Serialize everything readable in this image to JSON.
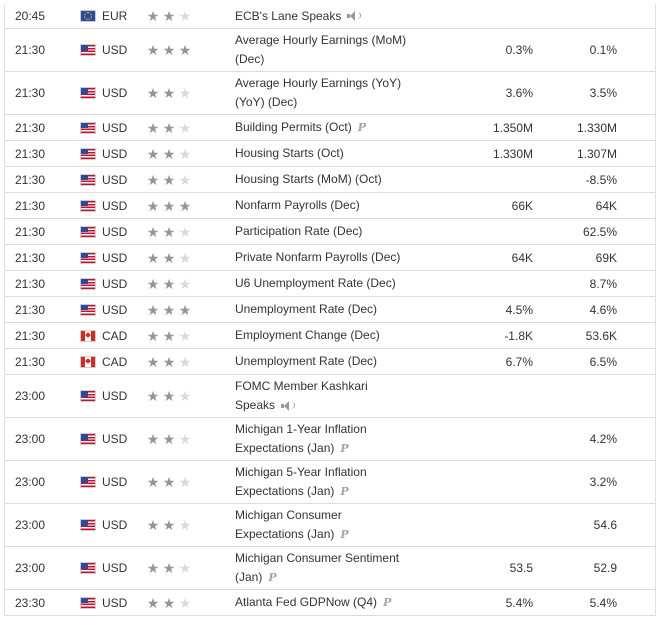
{
  "rows": [
    {
      "time": "20:45",
      "currency": "EUR",
      "flag": "eu",
      "stars": 2,
      "event": "ECB's Lane Speaks",
      "badge": "speaker",
      "actual": "",
      "forecast": ""
    },
    {
      "time": "21:30",
      "currency": "USD",
      "flag": "us",
      "stars": 3,
      "event": "Average Hourly Earnings (MoM) (Dec)",
      "badge": "",
      "actual": "0.3%",
      "forecast": "0.1%"
    },
    {
      "time": "21:30",
      "currency": "USD",
      "flag": "us",
      "stars": 2,
      "event": "Average Hourly Earnings (YoY) (YoY) (Dec)",
      "badge": "",
      "actual": "3.6%",
      "forecast": "3.5%"
    },
    {
      "time": "21:30",
      "currency": "USD",
      "flag": "us",
      "stars": 2,
      "event": "Building Permits (Oct)",
      "badge": "p",
      "actual": "1.350M",
      "forecast": "1.330M"
    },
    {
      "time": "21:30",
      "currency": "USD",
      "flag": "us",
      "stars": 2,
      "event": "Housing Starts (Oct)",
      "badge": "",
      "actual": "1.330M",
      "forecast": "1.307M"
    },
    {
      "time": "21:30",
      "currency": "USD",
      "flag": "us",
      "stars": 2,
      "event": "Housing Starts (MoM) (Oct)",
      "badge": "",
      "actual": "",
      "forecast": "-8.5%"
    },
    {
      "time": "21:30",
      "currency": "USD",
      "flag": "us",
      "stars": 3,
      "event": "Nonfarm Payrolls (Dec)",
      "badge": "",
      "actual": "66K",
      "forecast": "64K"
    },
    {
      "time": "21:30",
      "currency": "USD",
      "flag": "us",
      "stars": 2,
      "event": "Participation Rate (Dec)",
      "badge": "",
      "actual": "",
      "forecast": "62.5%"
    },
    {
      "time": "21:30",
      "currency": "USD",
      "flag": "us",
      "stars": 2,
      "event": "Private Nonfarm Payrolls (Dec)",
      "badge": "",
      "actual": "64K",
      "forecast": "69K"
    },
    {
      "time": "21:30",
      "currency": "USD",
      "flag": "us",
      "stars": 2,
      "event": "U6 Unemployment Rate (Dec)",
      "badge": "",
      "actual": "",
      "forecast": "8.7%"
    },
    {
      "time": "21:30",
      "currency": "USD",
      "flag": "us",
      "stars": 3,
      "event": "Unemployment Rate (Dec)",
      "badge": "",
      "actual": "4.5%",
      "forecast": "4.6%"
    },
    {
      "time": "21:30",
      "currency": "CAD",
      "flag": "ca",
      "stars": 2,
      "event": "Employment Change (Dec)",
      "badge": "",
      "actual": "-1.8K",
      "forecast": "53.6K"
    },
    {
      "time": "21:30",
      "currency": "CAD",
      "flag": "ca",
      "stars": 2,
      "event": "Unemployment Rate (Dec)",
      "badge": "",
      "actual": "6.7%",
      "forecast": "6.5%"
    },
    {
      "time": "23:00",
      "currency": "USD",
      "flag": "us",
      "stars": 2,
      "event": "FOMC Member Kashkari Speaks",
      "badge": "speaker",
      "actual": "",
      "forecast": ""
    },
    {
      "time": "23:00",
      "currency": "USD",
      "flag": "us",
      "stars": 2,
      "event": "Michigan 1-Year Inflation Expectations (Jan)",
      "badge": "p",
      "actual": "",
      "forecast": "4.2%"
    },
    {
      "time": "23:00",
      "currency": "USD",
      "flag": "us",
      "stars": 2,
      "event": "Michigan 5-Year Inflation Expectations (Jan)",
      "badge": "p",
      "actual": "",
      "forecast": "3.2%"
    },
    {
      "time": "23:00",
      "currency": "USD",
      "flag": "us",
      "stars": 2,
      "event": "Michigan Consumer Expectations (Jan)",
      "badge": "p",
      "actual": "",
      "forecast": "54.6"
    },
    {
      "time": "23:00",
      "currency": "USD",
      "flag": "us",
      "stars": 2,
      "event": "Michigan Consumer Sentiment (Jan)",
      "badge": "p",
      "actual": "53.5",
      "forecast": "52.9"
    },
    {
      "time": "23:30",
      "currency": "USD",
      "flag": "us",
      "stars": 2,
      "event": "Atlanta Fed GDPNow (Q4)",
      "badge": "p",
      "actual": "5.4%",
      "forecast": "5.4%"
    }
  ]
}
